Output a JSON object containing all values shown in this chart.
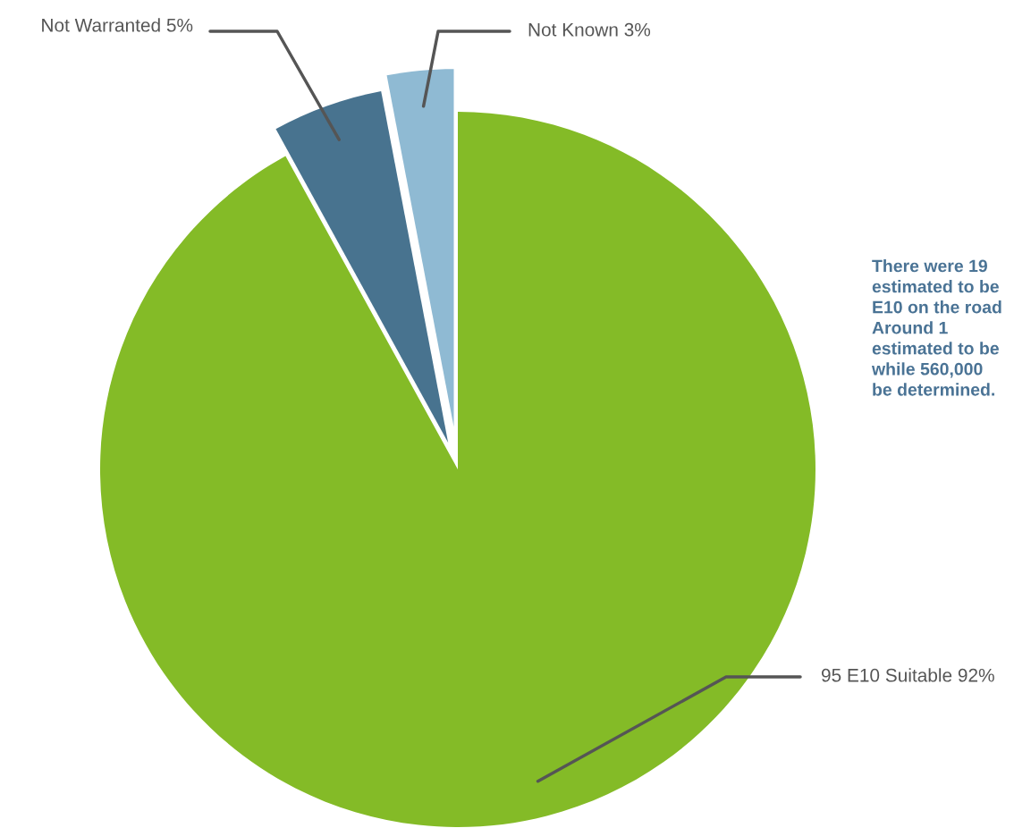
{
  "chart_data": {
    "type": "pie",
    "categories": [
      "95 E10 Suitable",
      "Not Warranted",
      "Not Known"
    ],
    "values": [
      92,
      5,
      3
    ],
    "value_labels": [
      "92%",
      "5%",
      "3%"
    ],
    "colors": [
      "#84bb27",
      "#48738f",
      "#8fbad3"
    ],
    "annotations": [
      "There were 19\nestimated to be\nE10 on the road\nAround 1\nestimated to be\nwhile 560,000\nbe determined."
    ]
  }
}
